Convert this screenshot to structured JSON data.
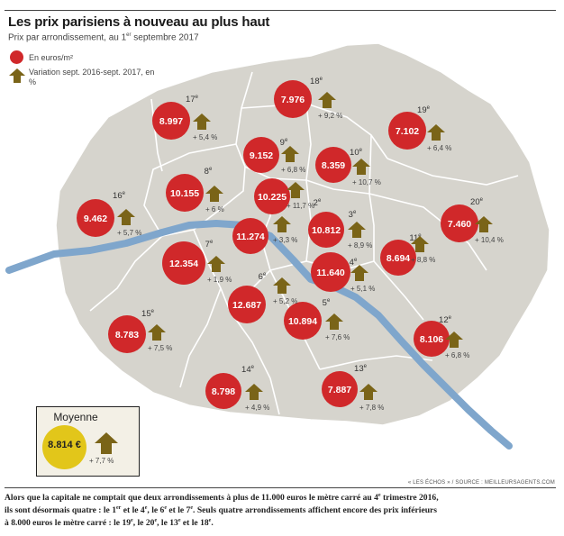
{
  "header": {
    "title": "Les prix parisiens à nouveau au plus haut",
    "subtitle_pre": "Prix par arrondissement, au 1",
    "subtitle_sup": "er",
    "subtitle_post": " septembre 2017"
  },
  "legend": {
    "price_label": "En euros/m²",
    "variation_label": "Variation sept. 2016-sept. 2017, en %",
    "price_color": "#d0282a",
    "arrow_color": "#7a6418",
    "arrow_icon": "up-arrow-icon"
  },
  "map": {
    "land_color": "#d6d4cd",
    "river_color": "#7fa6cc",
    "arrondissements": [
      {
        "num": "1",
        "sup": "er",
        "price": "11.274",
        "variation": "+ 3,3 %"
      },
      {
        "num": "2",
        "sup": "e",
        "price": "10.225",
        "variation": "+ 11,7 %"
      },
      {
        "num": "3",
        "sup": "e",
        "price": "10.812",
        "variation": "+ 8,9 %"
      },
      {
        "num": "4",
        "sup": "e",
        "price": "11.640",
        "variation": "+ 5,1 %"
      },
      {
        "num": "5",
        "sup": "e",
        "price": "10.894",
        "variation": "+ 7,6 %"
      },
      {
        "num": "6",
        "sup": "e",
        "price": "12.687",
        "variation": "+ 5,2 %"
      },
      {
        "num": "7",
        "sup": "e",
        "price": "12.354",
        "variation": "+ 1,9 %"
      },
      {
        "num": "8",
        "sup": "e",
        "price": "10.155",
        "variation": "+ 6 %"
      },
      {
        "num": "9",
        "sup": "e",
        "price": "9.152",
        "variation": "+ 6,8 %"
      },
      {
        "num": "10",
        "sup": "e",
        "price": "8.359",
        "variation": "+ 10,7 %"
      },
      {
        "num": "11",
        "sup": "e",
        "price": "8.694",
        "variation": "+ 8,8 %"
      },
      {
        "num": "12",
        "sup": "e",
        "price": "8.106",
        "variation": "+ 6,8 %"
      },
      {
        "num": "13",
        "sup": "e",
        "price": "7.887",
        "variation": "+ 7,8 %"
      },
      {
        "num": "14",
        "sup": "e",
        "price": "8.798",
        "variation": "+ 4,9 %"
      },
      {
        "num": "15",
        "sup": "e",
        "price": "8.783",
        "variation": "+ 7,5 %"
      },
      {
        "num": "16",
        "sup": "e",
        "price": "9.462",
        "variation": "+ 5,7 %"
      },
      {
        "num": "17",
        "sup": "e",
        "price": "8.997",
        "variation": "+ 5,4 %"
      },
      {
        "num": "18",
        "sup": "e",
        "price": "7.976",
        "variation": "+ 9,2 %"
      },
      {
        "num": "19",
        "sup": "e",
        "price": "7.102",
        "variation": "+ 6,4 %"
      },
      {
        "num": "20",
        "sup": "e",
        "price": "7.460",
        "variation": "+ 10,4 %"
      }
    ]
  },
  "average": {
    "title": "Moyenne",
    "price": "8.814 €",
    "variation": "+ 7,7 %",
    "circle_color": "#e2c61a"
  },
  "source": "« LES ÉCHOS » / SOURCE : MEILLEURSAGENTS.COM",
  "footer": {
    "line1": "Alors que la capitale ne comptait que deux arrondissements à plus de 11.000 euros le mètre carré au 4",
    "line1_sup": "e",
    "line1_end": " trimestre 2016,",
    "line2a": "ils sont désormais quatre : le 1",
    "line2_sup1": "er",
    "line2b": " et le 4",
    "line2_sup2": "e",
    "line2c": ", le 6",
    "line2_sup3": "e",
    "line2d": " et le 7",
    "line2_sup4": "e",
    "line2e": ". Seuls quatre arrondissements affichent encore des prix inférieurs",
    "line3a": "à 8.000 euros le mètre carré : le 19",
    "line3_sup1": "e",
    "line3b": ", le 20",
    "line3_sup2": "e",
    "line3c": ", le 13",
    "line3_sup3": "e",
    "line3d": " et le 18",
    "line3_sup4": "e",
    "line3e": "."
  }
}
